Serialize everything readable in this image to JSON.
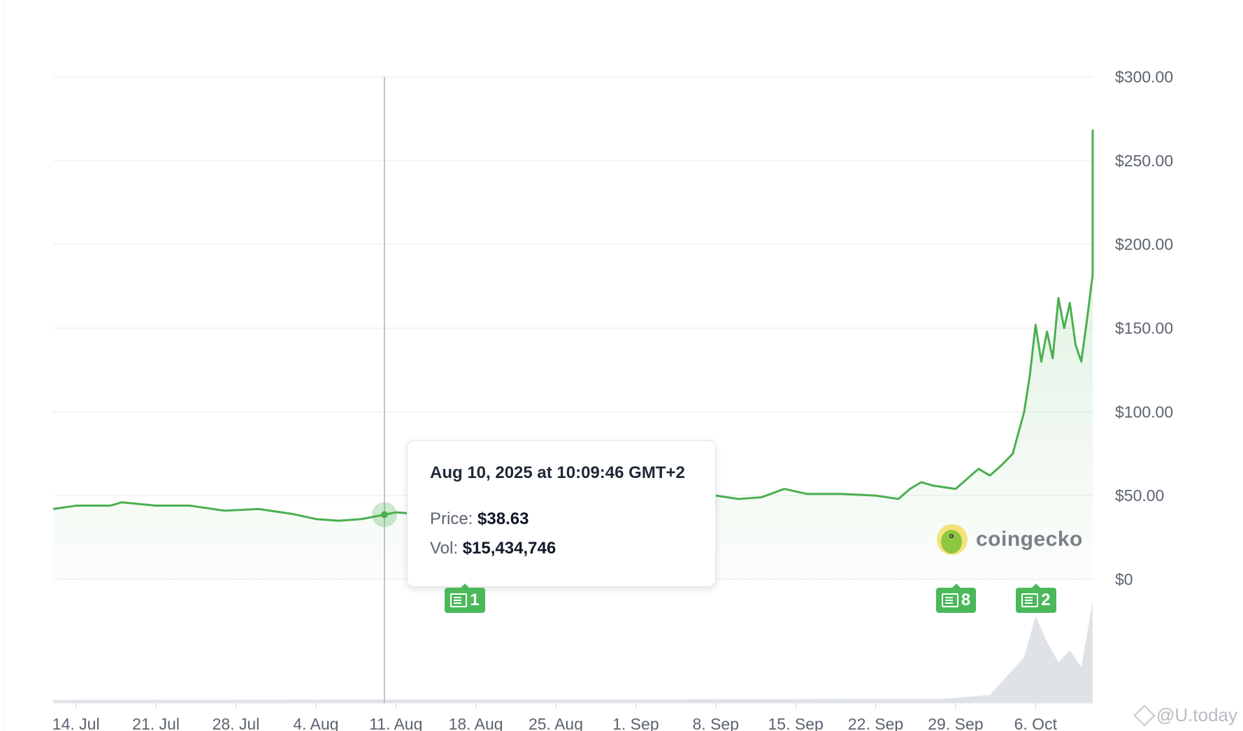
{
  "chart_data": {
    "type": "area",
    "y_axis": {
      "ticks": [
        "$300.00",
        "$250.00",
        "$200.00",
        "$150.00",
        "$100.00",
        "$50.00",
        "$0"
      ],
      "range": [
        0,
        300
      ],
      "position": "right"
    },
    "x_axis": {
      "ticks": [
        "14. Jul",
        "21. Jul",
        "28. Jul",
        "4. Aug",
        "11. Aug",
        "18. Aug",
        "25. Aug",
        "1. Sep",
        "8. Sep",
        "15. Sep",
        "22. Sep",
        "29. Sep",
        "6. Oct"
      ],
      "range": [
        "2025-07-12",
        "2025-10-11"
      ]
    },
    "grid": true,
    "series": [
      {
        "values": [
          [
            "2025-07-12",
            42
          ],
          [
            "2025-07-14",
            44
          ],
          [
            "2025-07-17",
            44
          ],
          [
            "2025-07-18",
            46
          ],
          [
            "2025-07-21",
            44
          ],
          [
            "2025-07-24",
            44
          ],
          [
            "2025-07-27",
            41
          ],
          [
            "2025-07-30",
            42
          ],
          [
            "2025-08-02",
            39
          ],
          [
            "2025-08-04",
            36
          ],
          [
            "2025-08-06",
            35
          ],
          [
            "2025-08-08",
            36
          ],
          [
            "2025-08-10",
            38.63
          ],
          [
            "2025-08-11",
            40
          ],
          [
            "2025-08-13",
            39
          ],
          [
            "2025-08-16",
            42
          ],
          [
            "2025-08-20",
            45
          ],
          [
            "2025-08-24",
            47
          ],
          [
            "2025-08-28",
            48
          ],
          [
            "2025-09-01",
            49
          ],
          [
            "2025-09-05",
            48
          ],
          [
            "2025-09-08",
            50
          ],
          [
            "2025-09-10",
            48
          ],
          [
            "2025-09-12",
            49
          ],
          [
            "2025-09-14",
            54
          ],
          [
            "2025-09-16",
            51
          ],
          [
            "2025-09-19",
            51
          ],
          [
            "2025-09-22",
            50
          ],
          [
            "2025-09-24",
            48
          ],
          [
            "2025-09-25",
            54
          ],
          [
            "2025-09-26",
            58
          ],
          [
            "2025-09-27",
            56
          ],
          [
            "2025-09-29",
            54
          ],
          [
            "2025-09-30",
            60
          ],
          [
            "2025-10-01",
            66
          ],
          [
            "2025-10-02",
            62
          ],
          [
            "2025-10-03",
            68
          ],
          [
            "2025-10-04",
            75
          ],
          [
            "2025-10-05",
            100
          ],
          [
            "2025-10-05",
            122
          ],
          [
            "2025-10-06",
            152
          ],
          [
            "2025-10-06",
            130
          ],
          [
            "2025-10-07",
            148
          ],
          [
            "2025-10-07",
            132
          ],
          [
            "2025-10-08",
            168
          ],
          [
            "2025-10-08",
            150
          ],
          [
            "2025-10-09",
            165
          ],
          [
            "2025-10-09",
            140
          ],
          [
            "2025-10-10",
            130
          ],
          [
            "2025-10-10",
            155
          ],
          [
            "2025-10-11",
            182
          ],
          [
            "2025-10-11",
            195
          ],
          [
            "2025-10-11",
            225
          ],
          [
            "2025-10-11",
            268
          ],
          [
            "2025-10-11",
            230
          ],
          [
            "2025-10-11",
            215
          ]
        ]
      }
    ],
    "volume": [
      [
        "2025-07-12",
        0.03
      ],
      [
        "2025-09-28",
        0.04
      ],
      [
        "2025-10-02",
        0.08
      ],
      [
        "2025-10-05",
        0.45
      ],
      [
        "2025-10-06",
        0.85
      ],
      [
        "2025-10-07",
        0.6
      ],
      [
        "2025-10-08",
        0.4
      ],
      [
        "2025-10-09",
        0.52
      ],
      [
        "2025-10-10",
        0.35
      ],
      [
        "2025-10-11",
        1.0
      ]
    ],
    "crosshair_date": "2025-08-10",
    "tooltip": {
      "date": "Aug 10, 2025 at 10:09:46 GMT+2",
      "price_label": "Price:",
      "price_value": "$38.63",
      "vol_label": "Vol:",
      "vol_value": "$15,434,746"
    },
    "news_badges": [
      {
        "date": "2025-08-17",
        "count": "1"
      },
      {
        "date": "2025-09-29",
        "count": "8"
      },
      {
        "date": "2025-10-06",
        "count": "2"
      }
    ]
  },
  "logo": {
    "text": "coingecko"
  },
  "watermark": {
    "text": "@U.today"
  },
  "colors": {
    "line": "#4caf50",
    "area": "#e8f5e9",
    "grid": "#e8eaed",
    "volume": "#dfe3e8",
    "badge": "#4bb85a"
  }
}
